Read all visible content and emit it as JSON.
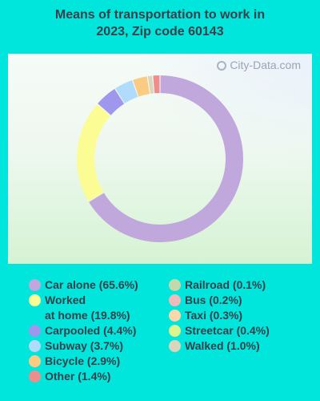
{
  "title_lines": [
    "Means of transportation to work in",
    "2023, Zip code 60143"
  ],
  "watermark": "City-Data.com",
  "chart_data": {
    "type": "pie",
    "title": "Means of transportation to work in 2023, Zip code 60143",
    "slices": [
      {
        "label": "Car alone (65.6%)",
        "value": 65.6,
        "color": "#c1a8dc"
      },
      {
        "label": "Worked\nat home (19.8%)",
        "value": 19.8,
        "color": "#fcfc95"
      },
      {
        "label": "Carpooled (4.4%)",
        "value": 4.4,
        "color": "#9f96ee"
      },
      {
        "label": "Subway (3.7%)",
        "value": 3.7,
        "color": "#b0dbfb"
      },
      {
        "label": "Bicycle (2.9%)",
        "value": 2.9,
        "color": "#fbcb84"
      },
      {
        "label": "Other (1.4%)",
        "value": 1.4,
        "color": "#ee8e8c"
      },
      {
        "label": "Railroad (0.1%)",
        "value": 0.1,
        "color": "#c5d8ab"
      },
      {
        "label": "Bus (0.2%)",
        "value": 0.2,
        "color": "#f0baba"
      },
      {
        "label": "Taxi (0.3%)",
        "value": 0.3,
        "color": "#fad8ab"
      },
      {
        "label": "Streetcar (0.4%)",
        "value": 0.4,
        "color": "#dcf58e"
      },
      {
        "label": "Walked (1.0%)",
        "value": 1.0,
        "color": "#dad6bd"
      }
    ],
    "draw_order": [
      "Car alone (65.6%)",
      "Worked\nat home (19.8%)",
      "Carpooled (4.4%)",
      "Subway (3.7%)",
      "Bicycle (2.9%)",
      "Walked (1.0%)",
      "Other (1.4%)"
    ],
    "legend_columns": [
      [
        "Car alone (65.6%)",
        "Worked\nat home (19.8%)",
        "Carpooled (4.4%)",
        "Subway (3.7%)",
        "Bicycle (2.9%)",
        "Other (1.4%)"
      ],
      [
        "Railroad (0.1%)",
        "Bus (0.2%)",
        "Taxi (0.3%)",
        "Streetcar (0.4%)",
        "Walked (1.0%)"
      ]
    ],
    "legend_placement": "bottom"
  }
}
